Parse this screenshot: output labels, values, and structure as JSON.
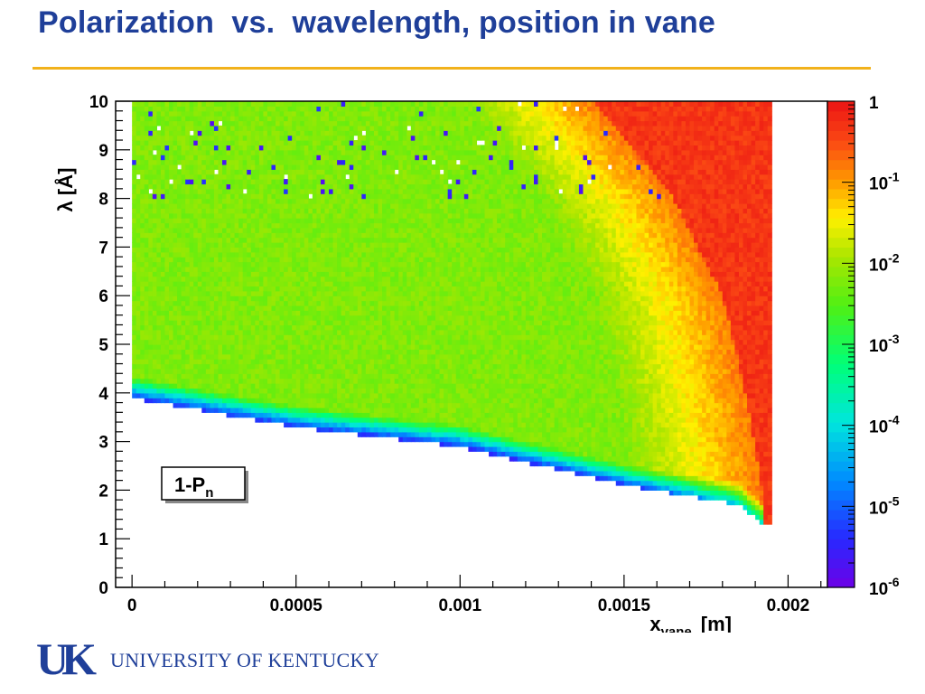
{
  "slide": {
    "title": "Polarization  vs.  wavelength, position in vane",
    "logo_letters": "UK",
    "institution": "UNIVERSITY OF KENTUCKY"
  },
  "colors": {
    "title": "#1f3f99",
    "rule": "#f2b21c",
    "logo": "#1f3f99"
  },
  "chart_data": {
    "type": "heatmap",
    "title": "",
    "xlabel_main": "x",
    "xlabel_sub": "vane",
    "xlabel_unit": "[m]",
    "ylabel": "λ  [Å]",
    "xlim": [
      -5e-05,
      0.00212
    ],
    "ylim": [
      0,
      10
    ],
    "xticks": [
      0,
      0.0005,
      0.001,
      0.0015,
      0.002
    ],
    "xtick_labels": [
      "0",
      "0.0005",
      "0.001",
      "0.0015",
      "0.002"
    ],
    "yticks": [
      0,
      1,
      2,
      3,
      4,
      5,
      6,
      7,
      8,
      9,
      10
    ],
    "ytick_labels": [
      "0",
      "1",
      "2",
      "3",
      "4",
      "5",
      "6",
      "7",
      "8",
      "9",
      "10"
    ],
    "z_scale": "log",
    "zlim": [
      1e-06,
      1
    ],
    "colorbar_labels": [
      {
        "base": "1",
        "exp": ""
      },
      {
        "base": "10",
        "exp": "-1"
      },
      {
        "base": "10",
        "exp": "-2"
      },
      {
        "base": "10",
        "exp": "-3"
      },
      {
        "base": "10",
        "exp": "-4"
      },
      {
        "base": "10",
        "exp": "-5"
      },
      {
        "base": "10",
        "exp": "-6"
      }
    ],
    "annotation": {
      "main": "1-P",
      "sub": "n"
    },
    "x_bin_width": 1.25e-05,
    "lambda_bin_width": 0.1,
    "coverage": {
      "x_min": 0,
      "x_max": 0.00195,
      "lambda_max": 10,
      "lower_edge_lambda": [
        {
          "x": 0,
          "lambda": 3.9
        },
        {
          "x": 0.0005,
          "lambda": 3.3
        },
        {
          "x": 0.001,
          "lambda": 2.9
        },
        {
          "x": 0.0015,
          "lambda": 2.1
        },
        {
          "x": 0.00185,
          "lambda": 1.7
        },
        {
          "x": 0.00192,
          "lambda": 1.3
        }
      ]
    },
    "model": {
      "high_region_boundary": [
        {
          "lambda": 10,
          "x": 0.0014
        },
        {
          "lambda": 8,
          "x": 0.00165
        },
        {
          "lambda": 6,
          "x": 0.0018
        },
        {
          "lambda": 4,
          "x": 0.00187
        },
        {
          "lambda": 2,
          "x": 0.00192
        }
      ],
      "low_band_above_lower_edge_lambda": 0.45,
      "background_log10_value": -2.2,
      "sparse_low_fraction_above_8A": 0.03
    }
  }
}
